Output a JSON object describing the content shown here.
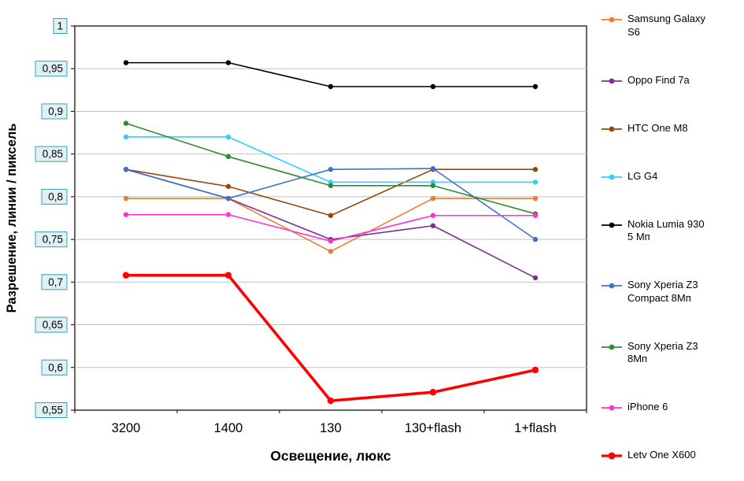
{
  "chart_data": {
    "type": "line",
    "title": "",
    "xlabel": "Освещение, люкс",
    "ylabel": "Разрешение, линии / пиксель",
    "categories": [
      "3200",
      "1400",
      "130",
      "130+flash",
      "1+flash"
    ],
    "ylim": [
      0.55,
      1.0
    ],
    "ytick_step": 0.05,
    "ytick_labels": [
      "0,55",
      "0,6",
      "0,65",
      "0,7",
      "0,75",
      "0,8",
      "0,85",
      "0,9",
      "0,95",
      "1"
    ],
    "grid": true,
    "grid_color": "#C0C0C0",
    "plot_border_color": "#000000",
    "background": "#FFFFFF",
    "y_tick_box": {
      "fill": "#DFF1F4",
      "border": "#3A9FAE"
    },
    "legend_position": "right",
    "series": [
      {
        "name": "Samsung Galaxy S6",
        "color": "#ED7D31",
        "width": 1.6,
        "values": [
          0.798,
          0.798,
          0.736,
          0.798,
          0.798
        ]
      },
      {
        "name": "Oppo Find 7a",
        "color": "#7E2F8E",
        "width": 1.6,
        "values": [
          0.832,
          0.798,
          0.75,
          0.766,
          0.705
        ]
      },
      {
        "name": "HTC One M8",
        "color": "#974706",
        "width": 1.6,
        "values": [
          0.832,
          0.812,
          0.778,
          0.832,
          0.832
        ]
      },
      {
        "name": "LG G4",
        "color": "#33CCFF",
        "width": 1.6,
        "values": [
          0.87,
          0.87,
          0.817,
          0.817,
          0.817
        ]
      },
      {
        "name": "Nokia Lumia 930 5 Мп",
        "color": "#000000",
        "width": 1.6,
        "values": [
          0.957,
          0.957,
          0.929,
          0.929,
          0.929
        ]
      },
      {
        "name": "Sony Xperia Z3 Compact 8Мп",
        "color": "#4472C4",
        "width": 1.6,
        "values": [
          0.832,
          0.798,
          0.832,
          0.833,
          0.75
        ]
      },
      {
        "name": "Sony Xperia Z3 8Мп",
        "color": "#2E8B2E",
        "width": 1.6,
        "values": [
          0.886,
          0.847,
          0.813,
          0.813,
          0.78
        ]
      },
      {
        "name": "iPhone 6",
        "color": "#FF33CC",
        "width": 1.6,
        "values": [
          0.779,
          0.779,
          0.748,
          0.778,
          0.778
        ]
      },
      {
        "name": "Letv One X600",
        "color": "#FF0000",
        "width": 3.6,
        "values": [
          0.708,
          0.708,
          0.561,
          0.571,
          0.597
        ]
      }
    ]
  }
}
